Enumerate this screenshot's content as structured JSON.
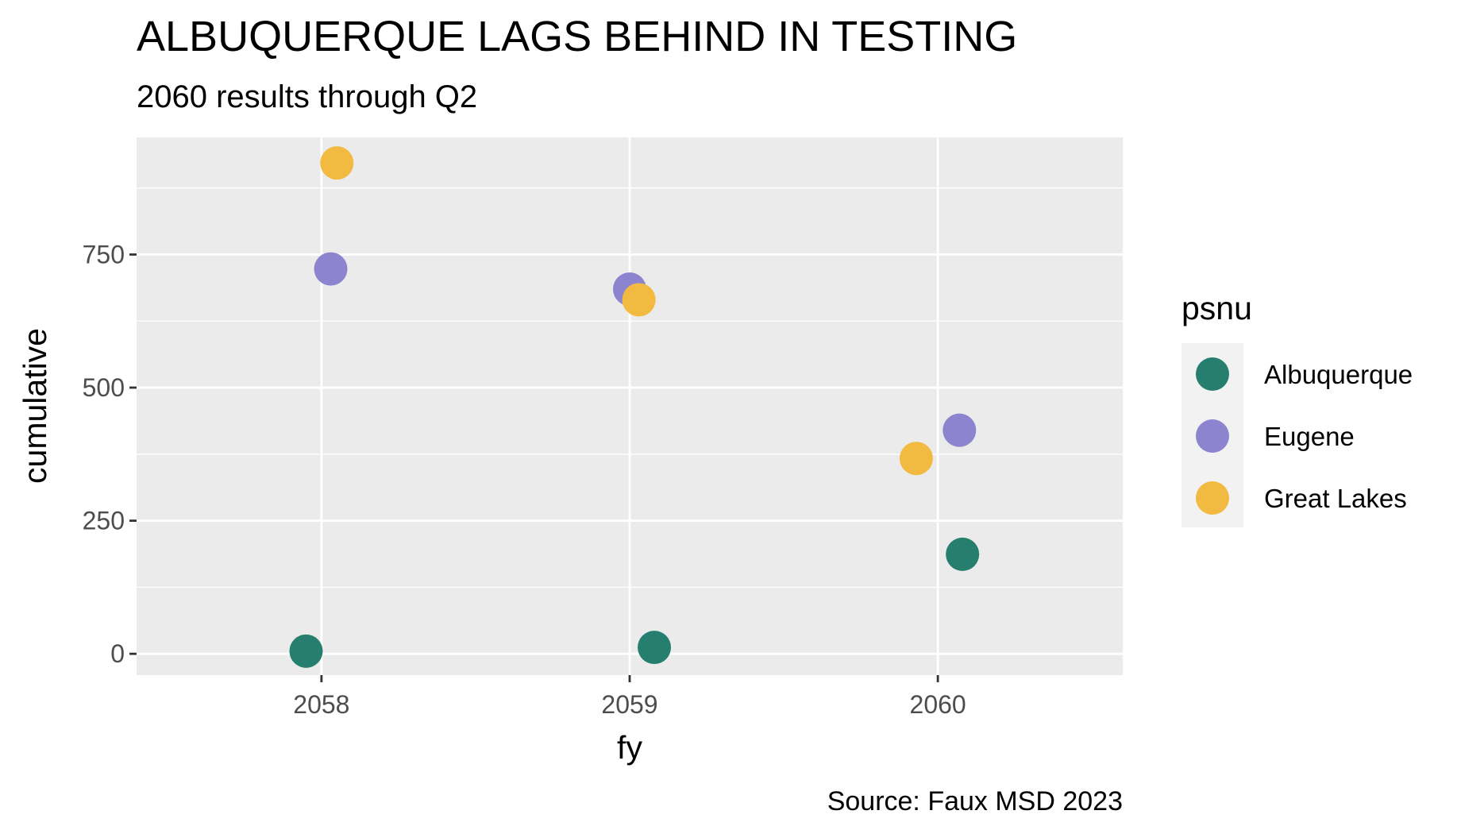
{
  "chart_data": {
    "type": "scatter",
    "title": "ALBUQUERQUE LAGS BEHIND IN TESTING",
    "subtitle": "2060 results through Q2",
    "caption": "Source: Faux MSD 2023",
    "xlabel": "fy",
    "ylabel": "cumulative",
    "x_ticks": [
      "2058",
      "2059",
      "2060"
    ],
    "y_ticks": [
      "0",
      "250",
      "500",
      "750"
    ],
    "xlim": [
      2057.4,
      2060.6
    ],
    "ylim": [
      -40,
      970
    ],
    "grid": true,
    "legend": {
      "title": "psnu",
      "placement": "right"
    },
    "series": [
      {
        "name": "Albuquerque",
        "color": "#267E6E",
        "points": [
          {
            "x": 2058,
            "y": 5
          },
          {
            "x": 2059,
            "y": 12
          },
          {
            "x": 2060,
            "y": 187
          }
        ]
      },
      {
        "name": "Eugene",
        "color": "#8C84CF",
        "points": [
          {
            "x": 2058,
            "y": 723
          },
          {
            "x": 2059,
            "y": 685
          },
          {
            "x": 2060,
            "y": 420
          }
        ]
      },
      {
        "name": "Great Lakes",
        "color": "#F2BA40",
        "points": [
          {
            "x": 2058,
            "y": 922
          },
          {
            "x": 2059,
            "y": 665
          },
          {
            "x": 2060,
            "y": 367
          }
        ]
      }
    ]
  }
}
